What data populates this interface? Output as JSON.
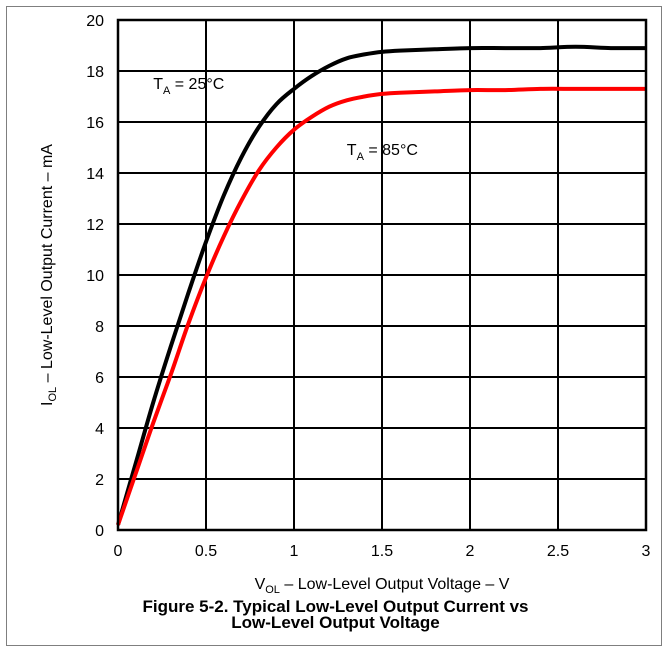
{
  "chart_data": {
    "type": "line",
    "x_axis": {
      "label_main": "V",
      "label_sub": "OL",
      "label_rest": " – Low-Level Output Voltage – V",
      "range": [
        0,
        3
      ],
      "ticks": [
        0,
        0.5,
        1,
        1.5,
        2,
        2.5,
        3
      ],
      "tick_labels": [
        "0",
        "0.5",
        "1",
        "1.5",
        "2",
        "2.5",
        "3"
      ]
    },
    "y_axis": {
      "label_main": "I",
      "label_sub": "OL",
      "label_rest": " – Low-Level Output Current – mA",
      "range": [
        0,
        20
      ],
      "ticks": [
        0,
        2,
        4,
        6,
        8,
        10,
        12,
        14,
        16,
        18,
        20
      ],
      "tick_labels": [
        "0",
        "2",
        "4",
        "6",
        "8",
        "10",
        "12",
        "14",
        "16",
        "18",
        "20"
      ]
    },
    "grid": true,
    "series": [
      {
        "name_main": "T",
        "name_sub": "A",
        "name_rest": " = 25°C",
        "color": "#000000",
        "x": [
          0,
          0.1,
          0.2,
          0.3,
          0.4,
          0.5,
          0.6,
          0.7,
          0.8,
          0.9,
          1.0,
          1.1,
          1.2,
          1.3,
          1.4,
          1.5,
          1.6,
          1.8,
          2.0,
          2.2,
          2.4,
          2.6,
          2.8,
          3.0
        ],
        "y": [
          0.2,
          2.6,
          5.0,
          7.2,
          9.3,
          11.3,
          13.1,
          14.6,
          15.8,
          16.7,
          17.3,
          17.8,
          18.2,
          18.5,
          18.65,
          18.75,
          18.8,
          18.85,
          18.9,
          18.9,
          18.9,
          18.95,
          18.9,
          18.9
        ]
      },
      {
        "name_main": "T",
        "name_sub": "A",
        "name_rest": " = 85°C",
        "color": "#ff0000",
        "x": [
          0,
          0.1,
          0.2,
          0.3,
          0.4,
          0.5,
          0.6,
          0.7,
          0.8,
          0.9,
          1.0,
          1.1,
          1.2,
          1.3,
          1.4,
          1.5,
          1.6,
          1.8,
          2.0,
          2.2,
          2.4,
          2.6,
          2.8,
          3.0
        ],
        "y": [
          0.2,
          2.2,
          4.2,
          6.1,
          8.1,
          9.9,
          11.5,
          12.9,
          14.1,
          15.0,
          15.7,
          16.2,
          16.6,
          16.85,
          17.0,
          17.1,
          17.15,
          17.2,
          17.25,
          17.25,
          17.3,
          17.3,
          17.3,
          17.3
        ]
      }
    ],
    "annotations": [
      {
        "series_index": 0,
        "at_x": 0.2,
        "at_y": 17.3
      },
      {
        "series_index": 1,
        "at_x": 1.3,
        "at_y": 14.7
      }
    ]
  },
  "caption": {
    "line1": "Figure 5-2. Typical Low-Level Output Current vs",
    "line2": "Low-Level Output Voltage"
  }
}
